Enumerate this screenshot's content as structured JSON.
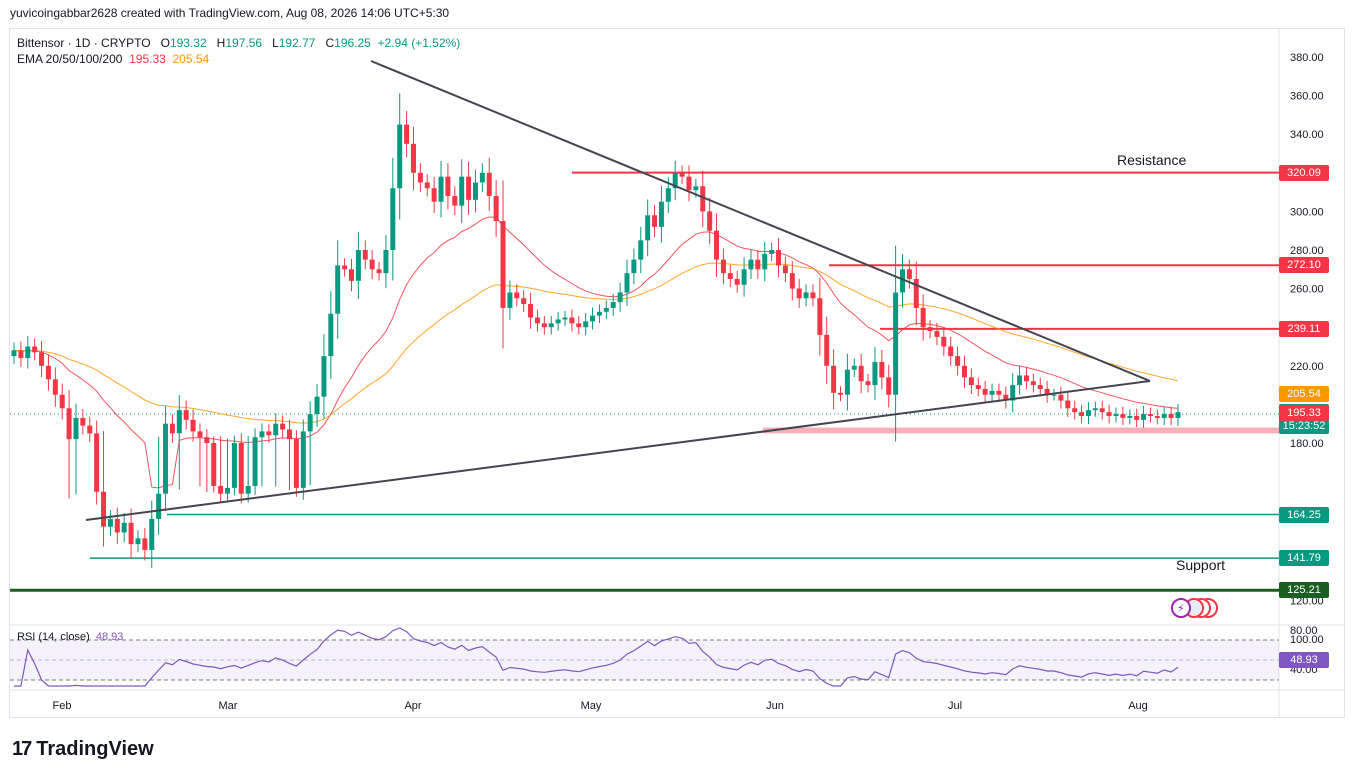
{
  "header": {
    "text": "yuvicoingabbar2628 created with TradingView.com, Aug 08, 2026 14:06 UTC+5:30"
  },
  "legend": {
    "symbol": "Bittensor · 1D · CRYPTO",
    "o_label": "O",
    "o": "193.32",
    "h_label": "H",
    "h": "197.56",
    "l_label": "L",
    "l": "192.77",
    "c_label": "C",
    "c": "196.25",
    "change": "+2.94 (+1.52%)",
    "ema_label": "EMA 20/50/100/200",
    "ema20": "195.33",
    "ema50": "205.54"
  },
  "rsi_legend": {
    "label": "RSI (14, close)",
    "value": "48.93"
  },
  "annotations": {
    "resistance": "Resistance",
    "support": "Support"
  },
  "branding": {
    "logo_text": "TradingView"
  },
  "colors": {
    "up": "#089981",
    "down": "#f23645",
    "ema20": "#f23645",
    "ema50": "#ff9800",
    "rsi": "#7e57c2",
    "support": "#089981",
    "strong_support": "#1b5e20"
  },
  "chart_data": {
    "type": "candlestick",
    "x_tick_labels": [
      "Feb",
      "Mar",
      "Apr",
      "May",
      "Jun",
      "Jul",
      "Aug"
    ],
    "y_tick_labels": [
      "380.00",
      "360.00",
      "340.00",
      "320.00",
      "300.00",
      "280.00",
      "260.00",
      "220.00",
      "180.00",
      "120.00",
      "100.00"
    ],
    "y_ticks": [
      380,
      360,
      340,
      320,
      300,
      280,
      260,
      220,
      180,
      120,
      100
    ],
    "ylim": [
      88,
      388
    ],
    "horizontal_levels": [
      {
        "value": 320.09,
        "label": "320.09",
        "kind": "resistance"
      },
      {
        "value": 272.1,
        "label": "272.10",
        "kind": "resistance"
      },
      {
        "value": 239.11,
        "label": "239.11",
        "kind": "resistance"
      },
      {
        "value": 164.25,
        "label": "164.25",
        "kind": "support"
      },
      {
        "value": 141.79,
        "label": "141.79",
        "kind": "support"
      },
      {
        "value": 125.21,
        "label": "125.21",
        "kind": "strong-support"
      }
    ],
    "price_tags": [
      {
        "value": 205.54,
        "label": "205.54",
        "kind": "ema50"
      },
      {
        "value": 196.25,
        "label": "196.25",
        "sub": "15:23:52",
        "kind": "last"
      },
      {
        "value": 195.33,
        "label": "195.33",
        "kind": "ema20"
      }
    ],
    "support_zone": [
      185,
      188
    ],
    "closes": [
      228,
      224,
      230,
      227,
      220,
      213,
      205,
      198,
      182,
      193,
      189,
      185,
      176,
      158,
      162,
      155,
      160,
      149,
      152,
      146,
      162,
      175,
      190,
      185,
      197,
      192,
      186,
      183,
      180,
      179,
      175,
      178,
      180,
      175,
      179,
      183,
      186,
      184,
      190,
      187,
      182,
      178,
      186,
      195,
      204,
      225,
      247,
      272,
      270,
      264,
      280,
      275,
      270,
      268,
      280,
      312,
      345,
      335,
      320,
      315,
      312,
      305,
      318,
      308,
      303,
      318,
      306,
      315,
      320,
      308,
      295,
      250,
      258,
      255,
      252,
      245,
      242,
      240,
      242,
      244,
      245,
      242,
      240,
      243,
      246,
      248,
      250,
      253,
      258,
      268,
      275,
      285,
      298,
      292,
      305,
      312,
      320,
      318,
      311,
      313,
      300,
      290,
      275,
      268,
      265,
      262,
      270,
      275,
      270,
      278,
      280,
      272,
      268,
      260,
      255,
      258,
      255,
      236,
      220,
      206,
      205,
      218,
      220,
      212,
      210,
      222,
      214,
      205,
      258,
      270,
      265,
      250,
      240,
      238,
      235,
      230,
      225,
      220,
      214,
      210,
      208,
      205,
      207,
      205,
      202,
      210,
      215,
      212,
      210,
      208,
      205,
      205,
      202,
      198,
      196,
      194,
      197,
      198,
      196,
      194,
      195,
      193,
      194,
      192,
      195,
      194,
      193,
      195,
      193,
      196
    ],
    "rsi": {
      "label": "RSI (14, close)",
      "y_tick_labels": [
        "80.00",
        "40.00"
      ],
      "upper_band": 70,
      "middle": 50,
      "lower_band": 30,
      "last": 48.93
    }
  }
}
